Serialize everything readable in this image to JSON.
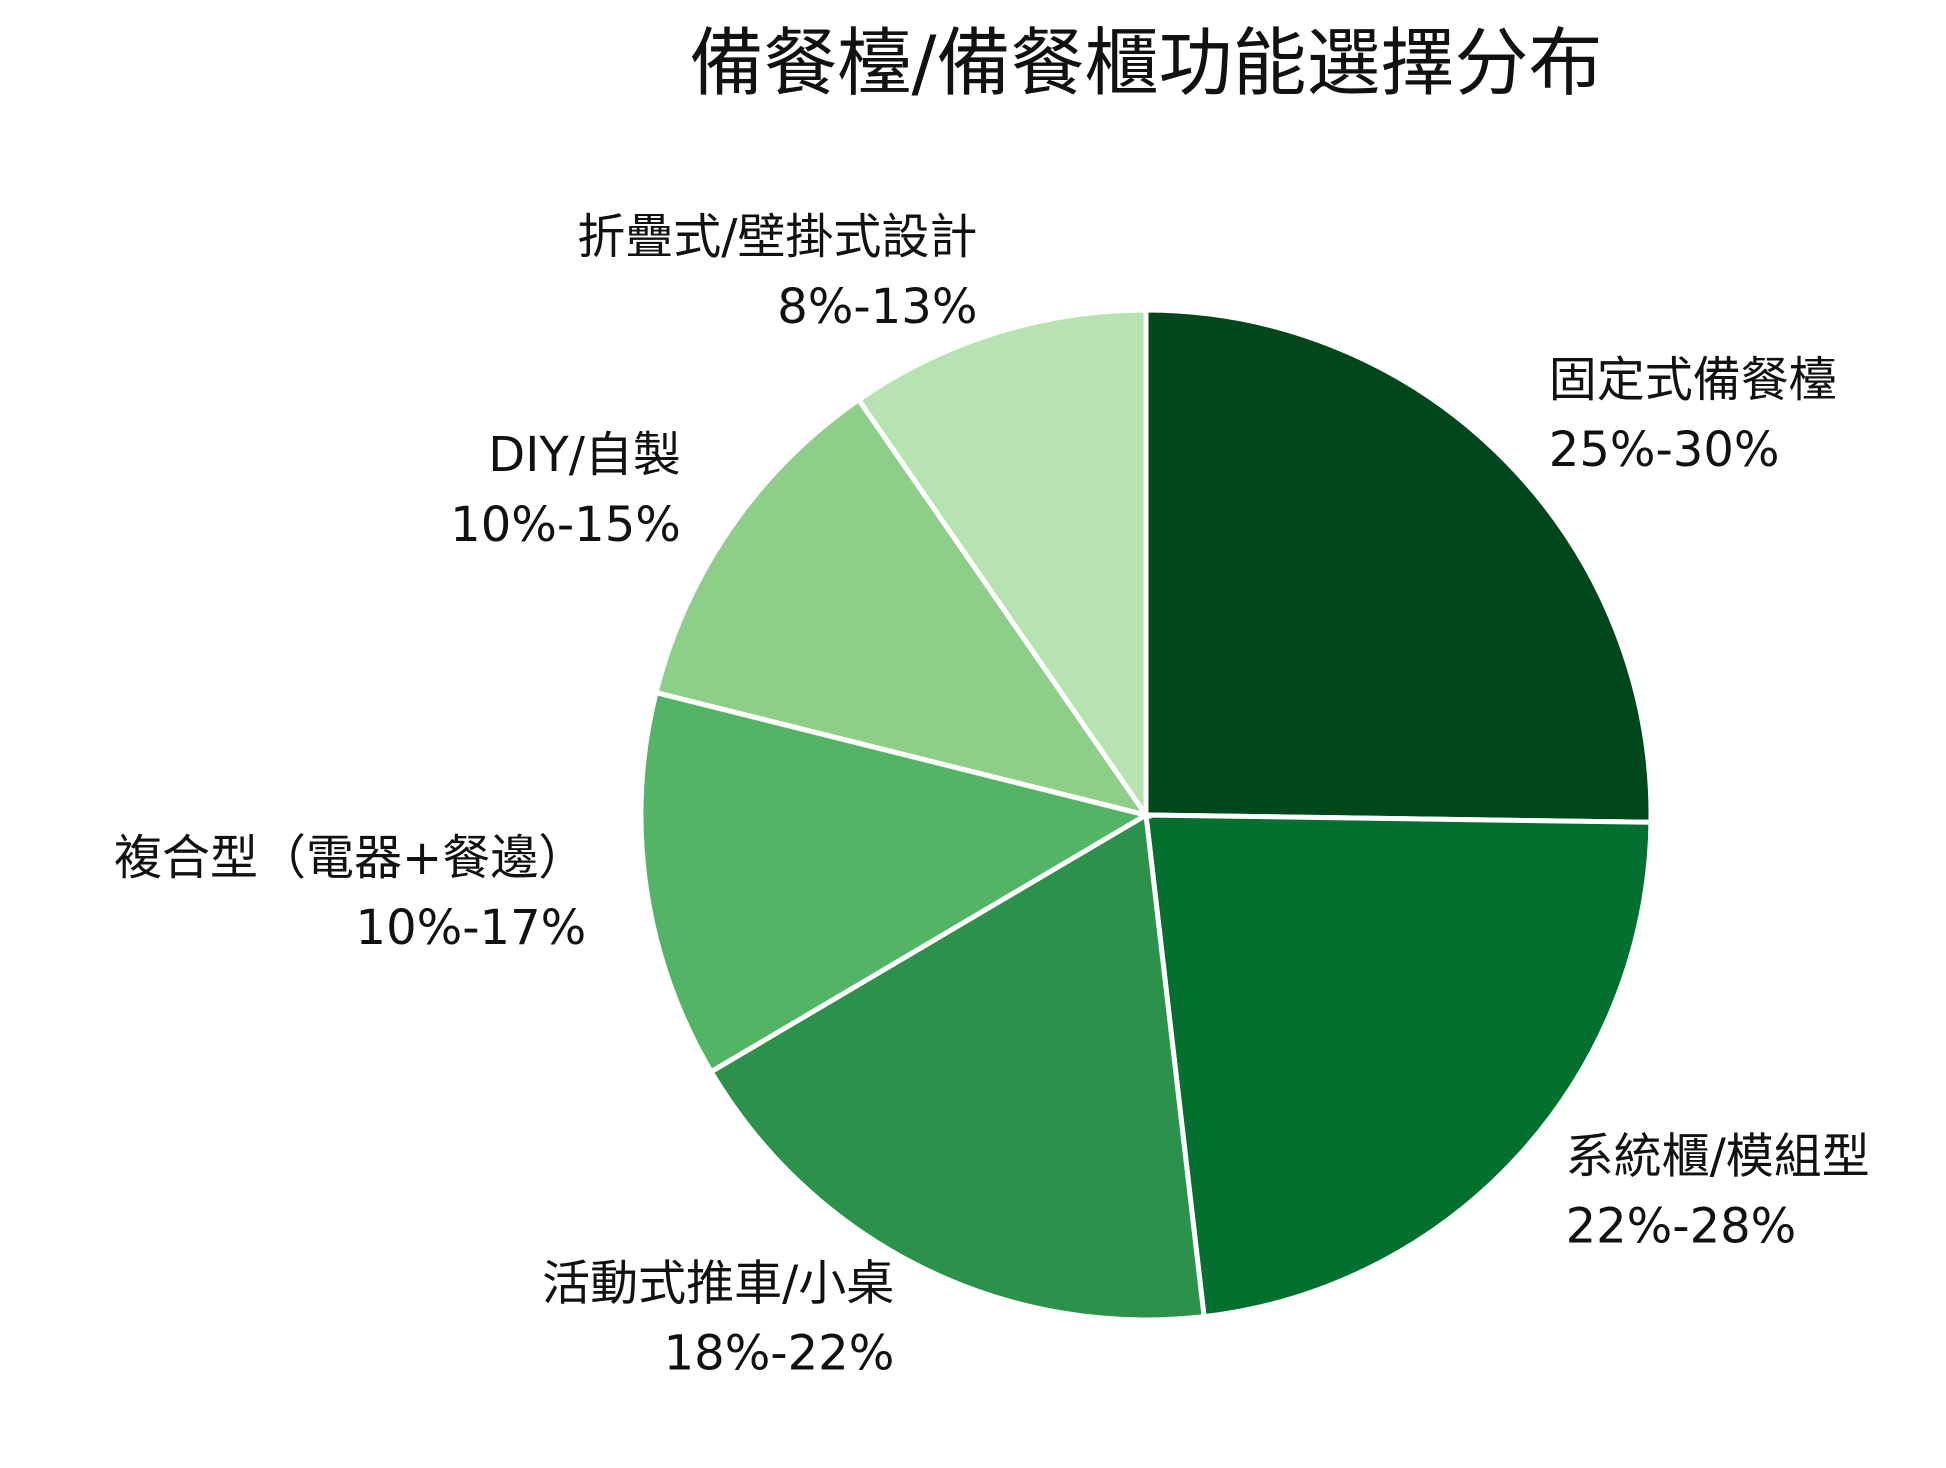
{
  "chart_data": {
    "type": "pie",
    "title": "備餐檯/備餐櫃功能選擇分布",
    "categories": [
      "固定式備餐檯",
      "系統櫃/模組型",
      "活動式推車/小桌",
      "複合型（電器+餐邊）",
      "DIY/自製",
      "折疊式/壁掛式設計"
    ],
    "values": [
      27.5,
      25,
      20,
      13.5,
      12.5,
      10.5
    ],
    "value_labels": [
      "25%-30%",
      "22%-28%",
      "18%-22%",
      "10%-17%",
      "10%-15%",
      "8%-13%"
    ],
    "colors": [
      "#00471b",
      "#04702f",
      "#2c914b",
      "#53b466",
      "#8dcf88",
      "#b7e2b1"
    ]
  }
}
